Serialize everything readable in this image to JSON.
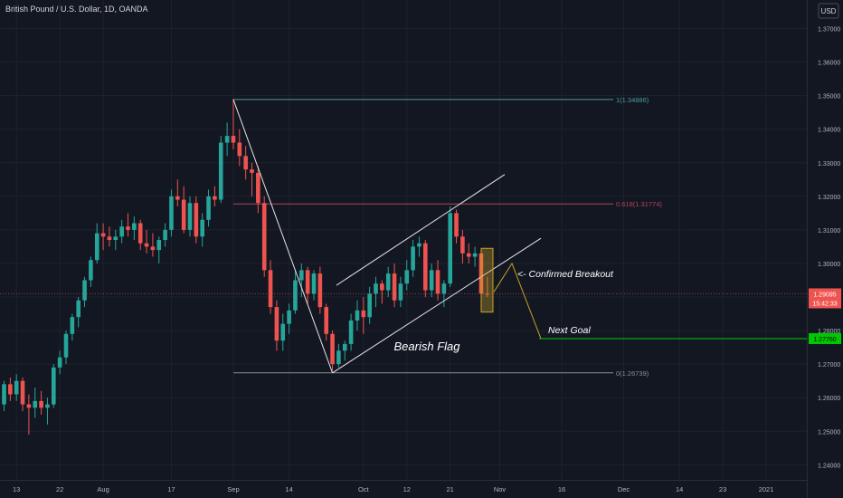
{
  "header": {
    "symbol_title": "British Pound / U.S. Dollar, 1D, OANDA",
    "currency": "USD"
  },
  "chart_data": {
    "type": "candlestick",
    "title": "British Pound / U.S. Dollar, 1D, OANDA",
    "ylim": [
      1.2355,
      1.3785
    ],
    "y_ticks": [
      {
        "value": 1.24,
        "label": "1.24000"
      },
      {
        "value": 1.25,
        "label": "1.25000"
      },
      {
        "value": 1.26,
        "label": "1.26000"
      },
      {
        "value": 1.27,
        "label": "1.27000"
      },
      {
        "value": 1.28,
        "label": "1.28000"
      },
      {
        "value": 1.29,
        "label": "1.29000"
      },
      {
        "value": 1.3,
        "label": "1.30000"
      },
      {
        "value": 1.31,
        "label": "1.31000"
      },
      {
        "value": 1.32,
        "label": "1.32000"
      },
      {
        "value": 1.33,
        "label": "1.33000"
      },
      {
        "value": 1.34,
        "label": "1.34000"
      },
      {
        "value": 1.35,
        "label": "1.35000"
      },
      {
        "value": 1.36,
        "label": "1.36000"
      },
      {
        "value": 1.37,
        "label": "1.37000"
      }
    ],
    "x_ticks": [
      {
        "bar": 2,
        "label": "13"
      },
      {
        "bar": 9,
        "label": "22"
      },
      {
        "bar": 16,
        "label": "Aug"
      },
      {
        "bar": 27,
        "label": "17"
      },
      {
        "bar": 37,
        "label": "Sep"
      },
      {
        "bar": 46,
        "label": "14"
      },
      {
        "bar": 58,
        "label": "Oct"
      },
      {
        "bar": 65,
        "label": "12"
      },
      {
        "bar": 72,
        "label": "21"
      },
      {
        "bar": 80,
        "label": "Nov"
      },
      {
        "bar": 90,
        "label": "16"
      },
      {
        "bar": 100,
        "label": "Dec"
      },
      {
        "bar": 109,
        "label": "14"
      },
      {
        "bar": 116,
        "label": "23"
      },
      {
        "bar": 123,
        "label": "2021"
      }
    ],
    "candles": [
      [
        1.258,
        1.265,
        1.256,
        1.264
      ],
      [
        1.264,
        1.266,
        1.259,
        1.261
      ],
      [
        1.261,
        1.267,
        1.259,
        1.265
      ],
      [
        1.265,
        1.266,
        1.256,
        1.258
      ],
      [
        1.258,
        1.261,
        1.249,
        1.257
      ],
      [
        1.257,
        1.263,
        1.254,
        1.259
      ],
      [
        1.259,
        1.262,
        1.255,
        1.257
      ],
      [
        1.257,
        1.26,
        1.252,
        1.258
      ],
      [
        1.258,
        1.27,
        1.257,
        1.269
      ],
      [
        1.269,
        1.274,
        1.267,
        1.272
      ],
      [
        1.272,
        1.28,
        1.27,
        1.279
      ],
      [
        1.279,
        1.285,
        1.277,
        1.284
      ],
      [
        1.284,
        1.29,
        1.281,
        1.289
      ],
      [
        1.289,
        1.296,
        1.287,
        1.295
      ],
      [
        1.295,
        1.302,
        1.293,
        1.301
      ],
      [
        1.301,
        1.312,
        1.3,
        1.309
      ],
      [
        1.309,
        1.312,
        1.304,
        1.308
      ],
      [
        1.308,
        1.311,
        1.305,
        1.307
      ],
      [
        1.307,
        1.31,
        1.304,
        1.308
      ],
      [
        1.308,
        1.313,
        1.306,
        1.311
      ],
      [
        1.311,
        1.315,
        1.308,
        1.31
      ],
      [
        1.31,
        1.314,
        1.307,
        1.312
      ],
      [
        1.312,
        1.313,
        1.304,
        1.306
      ],
      [
        1.306,
        1.31,
        1.303,
        1.305
      ],
      [
        1.305,
        1.309,
        1.302,
        1.304
      ],
      [
        1.304,
        1.308,
        1.3,
        1.307
      ],
      [
        1.307,
        1.312,
        1.305,
        1.31
      ],
      [
        1.31,
        1.322,
        1.308,
        1.32
      ],
      [
        1.32,
        1.325,
        1.317,
        1.319
      ],
      [
        1.319,
        1.323,
        1.309,
        1.31
      ],
      [
        1.31,
        1.32,
        1.308,
        1.318
      ],
      [
        1.318,
        1.32,
        1.306,
        1.308
      ],
      [
        1.308,
        1.315,
        1.305,
        1.313
      ],
      [
        1.313,
        1.322,
        1.311,
        1.32
      ],
      [
        1.32,
        1.323,
        1.317,
        1.319
      ],
      [
        1.319,
        1.338,
        1.318,
        1.336
      ],
      [
        1.336,
        1.342,
        1.332,
        1.338
      ],
      [
        1.338,
        1.349,
        1.334,
        1.336
      ],
      [
        1.336,
        1.34,
        1.329,
        1.332
      ],
      [
        1.332,
        1.335,
        1.325,
        1.328
      ],
      [
        1.328,
        1.33,
        1.32,
        1.327
      ],
      [
        1.327,
        1.329,
        1.315,
        1.318
      ],
      [
        1.318,
        1.32,
        1.296,
        1.298
      ],
      [
        1.298,
        1.301,
        1.285,
        1.287
      ],
      [
        1.287,
        1.289,
        1.274,
        1.277
      ],
      [
        1.277,
        1.285,
        1.274,
        1.282
      ],
      [
        1.282,
        1.288,
        1.279,
        1.286
      ],
      [
        1.286,
        1.298,
        1.285,
        1.295
      ],
      [
        1.295,
        1.3,
        1.29,
        1.298
      ],
      [
        1.298,
        1.299,
        1.288,
        1.291
      ],
      [
        1.291,
        1.298,
        1.289,
        1.297
      ],
      [
        1.297,
        1.299,
        1.285,
        1.287
      ],
      [
        1.287,
        1.288,
        1.277,
        1.279
      ],
      [
        1.279,
        1.28,
        1.268,
        1.27
      ],
      [
        1.27,
        1.276,
        1.269,
        1.274
      ],
      [
        1.274,
        1.277,
        1.271,
        1.276
      ],
      [
        1.276,
        1.285,
        1.274,
        1.283
      ],
      [
        1.283,
        1.289,
        1.28,
        1.286
      ],
      [
        1.286,
        1.29,
        1.279,
        1.284
      ],
      [
        1.284,
        1.293,
        1.282,
        1.291
      ],
      [
        1.291,
        1.296,
        1.287,
        1.294
      ],
      [
        1.294,
        1.295,
        1.288,
        1.292
      ],
      [
        1.292,
        1.299,
        1.29,
        1.297
      ],
      [
        1.297,
        1.3,
        1.287,
        1.289
      ],
      [
        1.289,
        1.296,
        1.287,
        1.294
      ],
      [
        1.294,
        1.301,
        1.292,
        1.298
      ],
      [
        1.298,
        1.307,
        1.296,
        1.305
      ],
      [
        1.305,
        1.308,
        1.302,
        1.306
      ],
      [
        1.306,
        1.307,
        1.29,
        1.292
      ],
      [
        1.292,
        1.3,
        1.29,
        1.298
      ],
      [
        1.298,
        1.301,
        1.289,
        1.291
      ],
      [
        1.291,
        1.295,
        1.287,
        1.294
      ],
      [
        1.294,
        1.317,
        1.293,
        1.315
      ],
      [
        1.315,
        1.316,
        1.306,
        1.308
      ],
      [
        1.308,
        1.31,
        1.3,
        1.303
      ],
      [
        1.303,
        1.306,
        1.3,
        1.302
      ],
      [
        1.302,
        1.305,
        1.299,
        1.303
      ],
      [
        1.303,
        1.304,
        1.286,
        1.291
      ],
      [
        1.291,
        1.296,
        1.29,
        1.2909
      ]
    ],
    "current_price": {
      "value": 1.29095,
      "label": "1.29095",
      "countdown": "15:42:33"
    },
    "target_price": {
      "value": 1.2776,
      "label": "1.27760"
    },
    "fib_levels": [
      {
        "value": 1.34886,
        "label": "1(1.34886)"
      },
      {
        "value": 1.31774,
        "label": "0.618(1.31774)"
      },
      {
        "value": 1.26739,
        "label": "0(1.26739)"
      }
    ],
    "annotations": {
      "pattern": "Bearish Flag",
      "breakout": "<- Confirmed Breakout",
      "goal": "Next Goal"
    },
    "colors": {
      "up": "#26a69a",
      "down": "#ef5350",
      "background": "#131722",
      "grid": "#1e222d",
      "fib_top": "#4c9a9a",
      "fib_mid": "#b2455a",
      "fib_bottom": "#8a8d96",
      "target": "#00c800",
      "current": "#ef5350",
      "highlight": "#c9a227"
    }
  }
}
